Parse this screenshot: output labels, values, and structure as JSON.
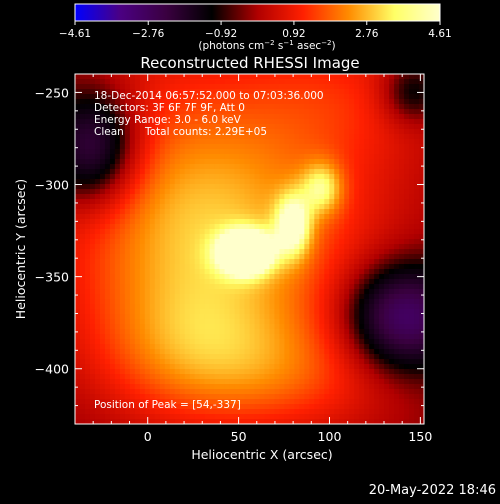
{
  "chart_data": {
    "type": "heatmap",
    "title": "Reconstructed RHESSI Image",
    "xlabel": "Heliocentric X (arcsec)",
    "ylabel": "Heliocentric Y (arcsec)",
    "xlim": [
      -40,
      152
    ],
    "ylim": [
      -430,
      -240
    ],
    "xticks": [
      0,
      50,
      100,
      150
    ],
    "xtick_labels": [
      "0",
      "50",
      "100",
      "150"
    ],
    "yticks": [
      -250,
      -300,
      -350,
      -400
    ],
    "ytick_labels": [
      "−250",
      "−300",
      "−350",
      "−400"
    ],
    "colorbar": {
      "range": [
        -4.61,
        4.61
      ],
      "ticks": [
        -4.61,
        -2.76,
        -0.92,
        0.92,
        2.76,
        4.61
      ],
      "tick_labels": [
        "−4.61",
        "−2.76",
        "−0.92",
        "0.92",
        "2.76",
        "4.61"
      ],
      "colors": [
        "#0000ff",
        "#4b0082",
        "#3a0040",
        "#000000",
        "#b00000",
        "#ff2000",
        "#ff8c00",
        "#ffff66",
        "#ffffcc"
      ],
      "unit_parts": [
        "(photons cm",
        "−2",
        " s",
        "−1",
        " asec",
        "−2",
        ")"
      ]
    },
    "info_lines": [
      "18-Dec-2014 06:57:52.000 to 07:03:36.000",
      "Detectors: 3F 6F 7F 9F, Att 0",
      "Energy Range: 3.0 - 6.0 keV"
    ],
    "clean_label": "Clean",
    "total_counts": "Total counts: 2.29E+05",
    "peak_text": "Position of Peak = [54,-337]",
    "peak": [
      54,
      -337
    ],
    "sources": [
      {
        "x": 54,
        "y": -337,
        "sx": 10,
        "sy": 8,
        "amp": 4.6
      },
      {
        "x": 80,
        "y": -322,
        "sx": 7,
        "sy": 12,
        "amp": 2.6
      },
      {
        "x": 96,
        "y": -302,
        "sx": 8,
        "sy": 10,
        "amp": 2.0
      },
      {
        "x": 50,
        "y": -330,
        "sx": 60,
        "sy": 45,
        "amp": 2.2
      },
      {
        "x": 10,
        "y": -290,
        "sx": 55,
        "sy": 60,
        "amp": 1.4
      },
      {
        "x": 110,
        "y": -250,
        "sx": 45,
        "sy": 30,
        "amp": 1.2
      },
      {
        "x": 20,
        "y": -390,
        "sx": 40,
        "sy": 30,
        "amp": 1.6
      },
      {
        "x": 80,
        "y": -405,
        "sx": 45,
        "sy": 25,
        "amp": 1.4
      },
      {
        "x": -30,
        "y": -280,
        "sx": 18,
        "sy": 22,
        "amp": -3.2
      },
      {
        "x": 140,
        "y": -372,
        "sx": 22,
        "sy": 20,
        "amp": -3.4
      },
      {
        "x": 145,
        "y": -250,
        "sx": 12,
        "sy": 12,
        "amp": -1.6
      }
    ]
  },
  "footer": {
    "date": "20-May-2022 18:46"
  }
}
